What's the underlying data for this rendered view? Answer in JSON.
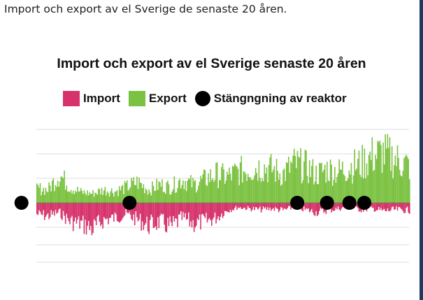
{
  "post": {
    "caption": "Import och export av el Sverige de senaste 20 åren."
  },
  "colors": {
    "import": "#d6336c",
    "export": "#7cc242",
    "closure": "#000000",
    "frame": "#1e3a5f"
  },
  "chart_data": {
    "type": "bar",
    "title": "Import och export av el Sverige senaste 20 åren",
    "legend": [
      {
        "key": "import",
        "label": "Import"
      },
      {
        "key": "export",
        "label": "Export"
      },
      {
        "key": "closure",
        "label": "Stängngning av reaktor"
      }
    ],
    "legend_position": "top",
    "grid": true,
    "x_range": [
      0,
      100
    ],
    "y_range": [
      -1,
      1
    ],
    "series": [
      {
        "name": "Import",
        "color_key": "import",
        "envelope": [
          [
            0,
            -0.3
          ],
          [
            3,
            -0.35
          ],
          [
            6,
            -0.25
          ],
          [
            9,
            -0.5
          ],
          [
            12,
            -0.55
          ],
          [
            15,
            -0.7
          ],
          [
            18,
            -0.45
          ],
          [
            21,
            -0.4
          ],
          [
            24,
            -0.3
          ],
          [
            27,
            -0.45
          ],
          [
            30,
            -0.6
          ],
          [
            33,
            -0.5
          ],
          [
            36,
            -0.65
          ],
          [
            39,
            -0.4
          ],
          [
            42,
            -0.55
          ],
          [
            45,
            -0.5
          ],
          [
            48,
            -0.4
          ],
          [
            51,
            -0.2
          ],
          [
            54,
            -0.12
          ],
          [
            57,
            -0.15
          ],
          [
            60,
            -0.18
          ],
          [
            63,
            -0.15
          ],
          [
            66,
            -0.2
          ],
          [
            69,
            -0.12
          ],
          [
            72,
            -0.18
          ],
          [
            75,
            -0.25
          ],
          [
            78,
            -0.2
          ],
          [
            81,
            -0.15
          ],
          [
            84,
            -0.12
          ],
          [
            87,
            -0.18
          ],
          [
            90,
            -0.15
          ],
          [
            93,
            -0.22
          ],
          [
            96,
            -0.18
          ],
          [
            100,
            -0.2
          ]
        ]
      },
      {
        "name": "Export",
        "color_key": "export",
        "envelope": [
          [
            0,
            0.28
          ],
          [
            3,
            0.25
          ],
          [
            6,
            0.55
          ],
          [
            9,
            0.3
          ],
          [
            12,
            0.2
          ],
          [
            15,
            0.18
          ],
          [
            18,
            0.25
          ],
          [
            21,
            0.22
          ],
          [
            24,
            0.3
          ],
          [
            27,
            0.4
          ],
          [
            30,
            0.25
          ],
          [
            33,
            0.35
          ],
          [
            36,
            0.3
          ],
          [
            39,
            0.45
          ],
          [
            42,
            0.35
          ],
          [
            45,
            0.45
          ],
          [
            48,
            0.55
          ],
          [
            51,
            0.5
          ],
          [
            54,
            0.6
          ],
          [
            57,
            0.65
          ],
          [
            60,
            0.7
          ],
          [
            63,
            0.65
          ],
          [
            66,
            0.55
          ],
          [
            69,
            0.75
          ],
          [
            72,
            0.7
          ],
          [
            75,
            0.55
          ],
          [
            78,
            0.65
          ],
          [
            81,
            0.6
          ],
          [
            84,
            0.7
          ],
          [
            87,
            0.75
          ],
          [
            90,
            0.9
          ],
          [
            93,
            0.95
          ],
          [
            96,
            0.85
          ],
          [
            100,
            0.7
          ]
        ]
      }
    ],
    "reactor_closures_x": [
      -4,
      25,
      70,
      78,
      84,
      88
    ]
  }
}
